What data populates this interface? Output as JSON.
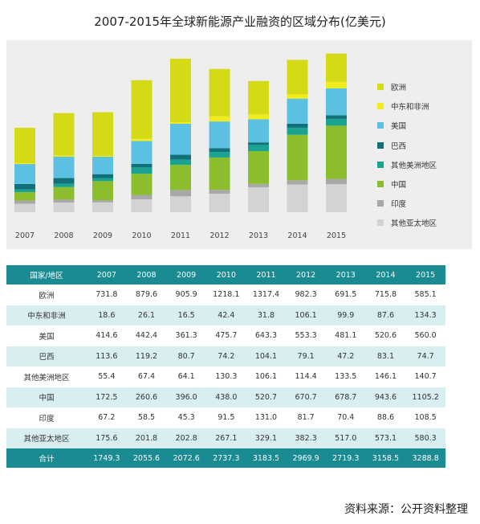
{
  "title": "2007-2015年全球新能源产业融资的区域分布(亿美元)",
  "chart_data": {
    "type": "bar",
    "stacked": true,
    "categories": [
      "2007",
      "2008",
      "2009",
      "2010",
      "2011",
      "2012",
      "2013",
      "2014",
      "2015"
    ],
    "series": [
      {
        "name": "其他亚太地区",
        "color": "#d3d3d3",
        "values": [
          175.6,
          201.8,
          202.8,
          267.1,
          329.1,
          382.3,
          517.0,
          573.1,
          580.3
        ]
      },
      {
        "name": "印度",
        "color": "#a8a8a8",
        "values": [
          67.2,
          58.5,
          45.3,
          91.5,
          131.0,
          81.7,
          70.4,
          88.6,
          108.5
        ]
      },
      {
        "name": "中国",
        "color": "#8cbd2c",
        "values": [
          172.5,
          260.6,
          396.0,
          438.0,
          520.7,
          670.7,
          678.7,
          943.6,
          1105.2
        ]
      },
      {
        "name": "其他美洲地区",
        "color": "#1aa391",
        "values": [
          55.4,
          67.4,
          64.1,
          130.3,
          106.1,
          114.4,
          133.5,
          146.1,
          140.7
        ]
      },
      {
        "name": "巴西",
        "color": "#12707a",
        "values": [
          113.6,
          119.2,
          80.7,
          74.2,
          104.1,
          79.1,
          47.2,
          83.1,
          74.7
        ]
      },
      {
        "name": "美国",
        "color": "#5cc1e0",
        "values": [
          414.6,
          442.4,
          361.3,
          475.7,
          643.3,
          553.3,
          481.1,
          520.6,
          560.0
        ]
      },
      {
        "name": "中东和非洲",
        "color": "#f2ec1c",
        "values": [
          18.6,
          26.1,
          16.5,
          42.4,
          31.8,
          106.1,
          99.9,
          87.6,
          134.3
        ]
      },
      {
        "name": "欧洲",
        "color": "#d4da16",
        "values": [
          731.8,
          879.6,
          905.9,
          1218.1,
          1317.4,
          982.3,
          691.5,
          715.8,
          585.1
        ]
      }
    ],
    "legend": [
      "欧洲",
      "中东和非洲",
      "美国",
      "巴西",
      "其他美洲地区",
      "中国",
      "印度",
      "其他亚太地区"
    ],
    "legend_colors": [
      "#d4da16",
      "#f2ec1c",
      "#5cc1e0",
      "#12707a",
      "#1aa391",
      "#8cbd2c",
      "#a8a8a8",
      "#d3d3d3"
    ],
    "ylim": [
      0,
      3400
    ],
    "grid": false,
    "legend_position": "right"
  },
  "table": {
    "header": [
      "国家/地区",
      "2007",
      "2008",
      "2009",
      "2010",
      "2011",
      "2012",
      "2013",
      "2014",
      "2015"
    ],
    "rows": [
      [
        "欧洲",
        "731.8",
        "879.6",
        "905.9",
        "1218.1",
        "1317.4",
        "982.3",
        "691.5",
        "715.8",
        "585.1"
      ],
      [
        "中东和非洲",
        "18.6",
        "26.1",
        "16.5",
        "42.4",
        "31.8",
        "106.1",
        "99.9",
        "87.6",
        "134.3"
      ],
      [
        "美国",
        "414.6",
        "442.4",
        "361.3",
        "475.7",
        "643.3",
        "553.3",
        "481.1",
        "520.6",
        "560.0"
      ],
      [
        "巴西",
        "113.6",
        "119.2",
        "80.7",
        "74.2",
        "104.1",
        "79.1",
        "47.2",
        "83.1",
        "74.7"
      ],
      [
        "其他美洲地区",
        "55.4",
        "67.4",
        "64.1",
        "130.3",
        "106.1",
        "114.4",
        "133.5",
        "146.1",
        "140.7"
      ],
      [
        "中国",
        "172.5",
        "260.6",
        "396.0",
        "438.0",
        "520.7",
        "670.7",
        "678.7",
        "943.6",
        "1105.2"
      ],
      [
        "印度",
        "67.2",
        "58.5",
        "45.3",
        "91.5",
        "131.0",
        "81.7",
        "70.4",
        "88.6",
        "108.5"
      ],
      [
        "其他亚太地区",
        "175.6",
        "201.8",
        "202.8",
        "267.1",
        "329.1",
        "382.3",
        "517.0",
        "573.1",
        "580.3"
      ]
    ],
    "total": [
      "合计",
      "1749.3",
      "2055.6",
      "2072.6",
      "2737.3",
      "3183.5",
      "2969.9",
      "2719.3",
      "3158.5",
      "3288.8"
    ],
    "header_color": "#1a8a93",
    "stripe_color": "#d8eef0"
  },
  "source": "资料来源：公开资料整理"
}
